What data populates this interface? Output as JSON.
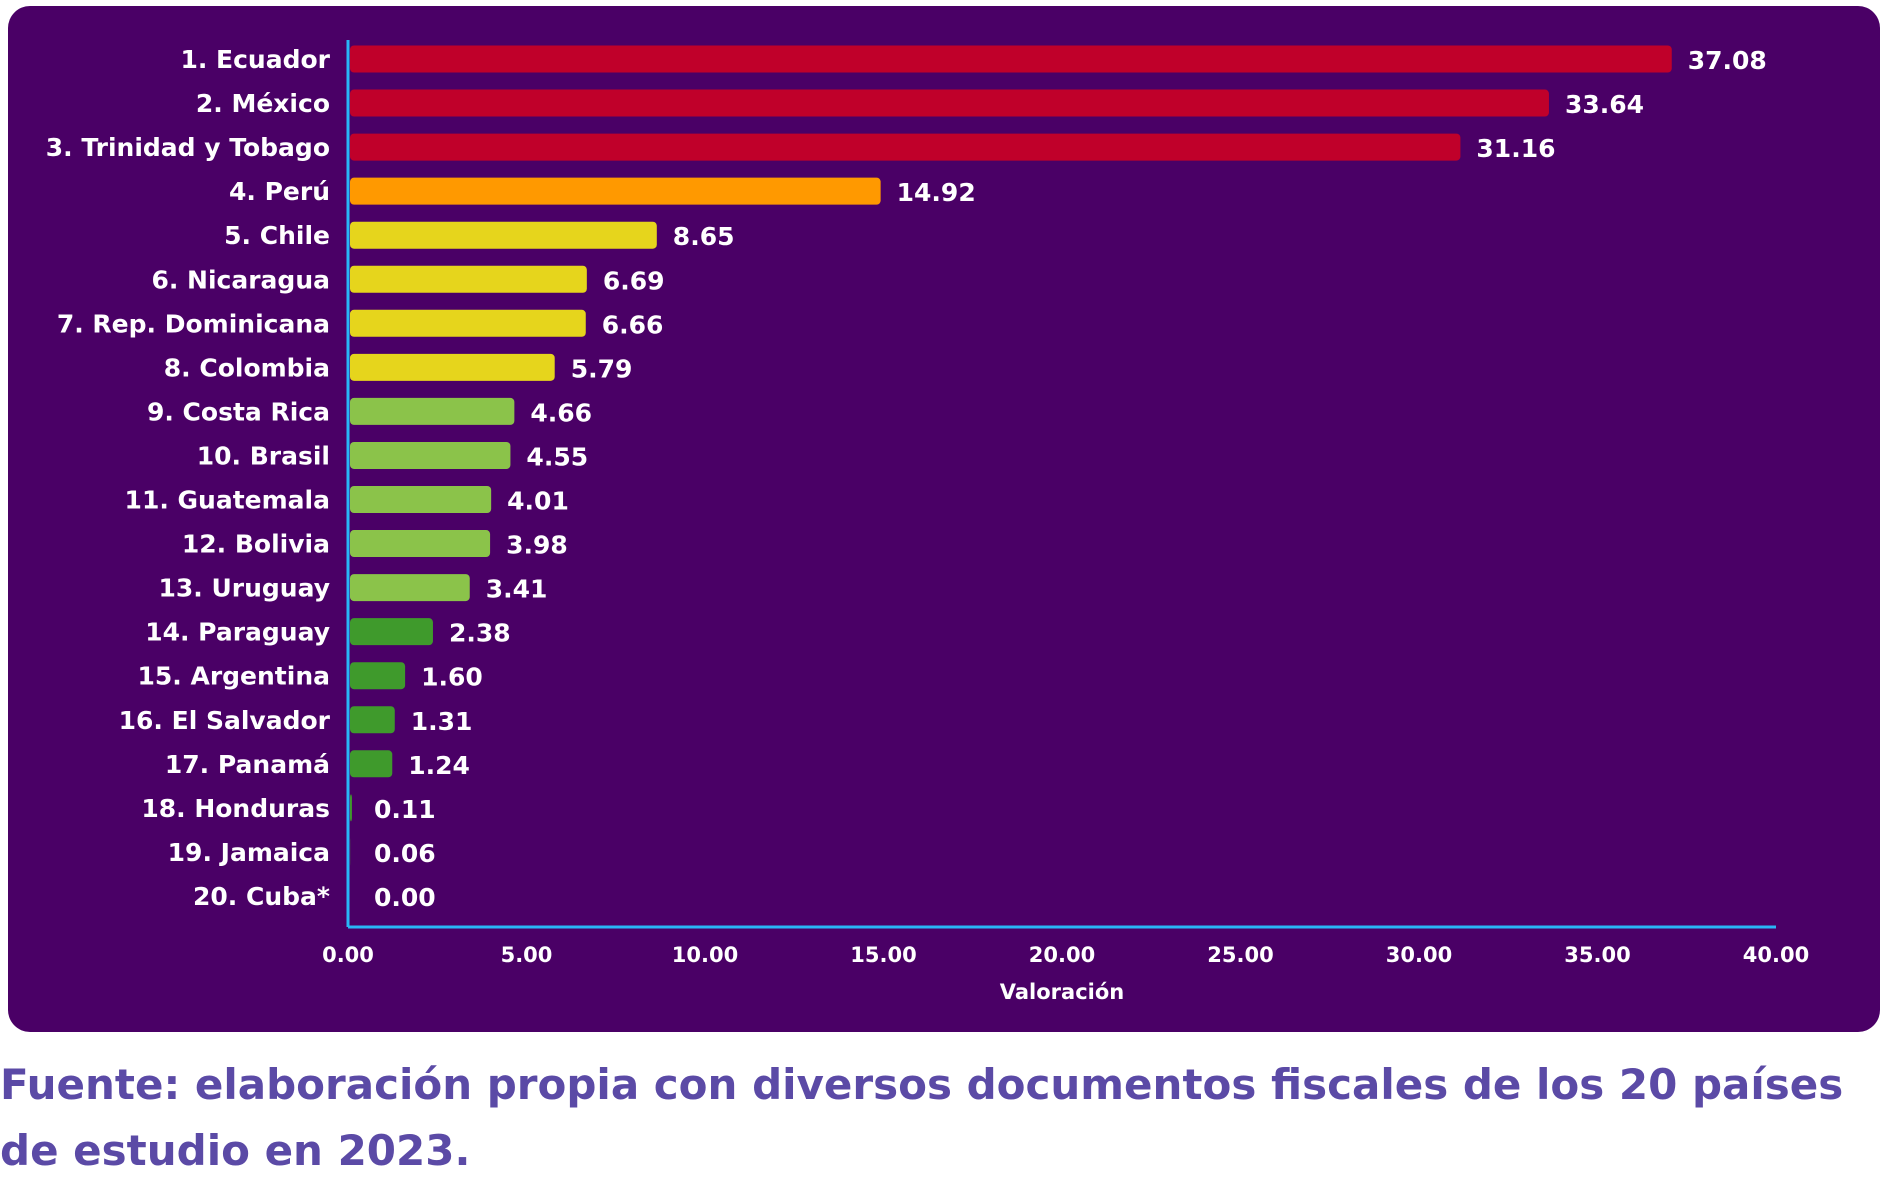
{
  "chart_data": {
    "type": "bar",
    "orientation": "horizontal",
    "categories": [
      "1. Ecuador",
      "2. México",
      "3. Trinidad y Tobago",
      "4. Perú",
      "5. Chile",
      "6. Nicaragua",
      "7. Rep. Dominicana",
      "8. Colombia",
      "9. Costa Rica",
      "10. Brasil",
      "11. Guatemala",
      "12. Bolivia",
      "13. Uruguay",
      "14. Paraguay",
      "15. Argentina",
      "16. El Salvador",
      "17. Panamá",
      "18. Honduras",
      "19. Jamaica",
      "20. Cuba*"
    ],
    "values": [
      37.08,
      33.64,
      31.16,
      14.92,
      8.65,
      6.69,
      6.66,
      5.79,
      4.66,
      4.55,
      4.01,
      3.98,
      3.41,
      2.38,
      1.6,
      1.31,
      1.24,
      0.11,
      0.06,
      0.0
    ],
    "value_labels": [
      "37.08",
      "33.64",
      "31.16",
      "14.92",
      "8.65",
      "6.69",
      "6.66",
      "5.79",
      "4.66",
      "4.55",
      "4.01",
      "3.98",
      "3.41",
      "2.38",
      "1.60",
      "1.31",
      "1.24",
      "0.11",
      "0.06",
      "0.00"
    ],
    "bar_colors": [
      "#c0002a",
      "#c0002a",
      "#c0002a",
      "#ff9900",
      "#e6d51c",
      "#e6d51c",
      "#e6d51c",
      "#e6d51c",
      "#8bc34a",
      "#8bc34a",
      "#8bc34a",
      "#8bc34a",
      "#8bc34a",
      "#3f9a2c",
      "#3f9a2c",
      "#3f9a2c",
      "#3f9a2c",
      "#3f9a2c",
      "#3f9a2c",
      "#3f9a2c"
    ],
    "xlabel": "Valoración",
    "ylabel": "",
    "xlim": [
      0,
      40
    ],
    "x_ticks": [
      "0.00",
      "5.00",
      "10.00",
      "15.00",
      "20.00",
      "25.00",
      "30.00",
      "35.00",
      "40.00"
    ],
    "grid": false,
    "legend": "none",
    "background": "#4a0066",
    "axis_color": "#29b6f6"
  },
  "source_note": "Fuente: elaboración propia con diversos documentos fiscales de los 20 países de estudio en 2023.",
  "colors": {
    "source_text": "#5b4aa6",
    "label_text": "#ffffff"
  }
}
